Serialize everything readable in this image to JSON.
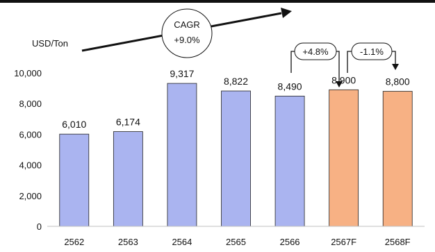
{
  "chart_data": {
    "type": "bar",
    "ylabel": "USD/Ton",
    "categories": [
      "2562",
      "2563",
      "2564",
      "2565",
      "2566",
      "2567F",
      "2568F"
    ],
    "values": [
      6010,
      6174,
      9317,
      8822,
      8490,
      8900,
      8800
    ],
    "value_labels": [
      "6,010",
      "6,174",
      "9,317",
      "8,822",
      "8,490",
      "8,900",
      "8,800"
    ],
    "forecast": [
      false,
      false,
      false,
      false,
      false,
      true,
      true
    ],
    "yticks": [
      "0",
      "2,000",
      "4,000",
      "6,000",
      "8,000",
      "10,000"
    ],
    "ytick_values": [
      0,
      2000,
      4000,
      6000,
      8000,
      10000
    ],
    "ylim": [
      0,
      10000
    ],
    "grid": false,
    "colors": {
      "actual": "#aab4f0",
      "forecast": "#f7b184",
      "text": "#111111"
    },
    "annotations": {
      "cagr": {
        "title": "CAGR",
        "value": "+9.0%"
      },
      "changes": [
        {
          "label": "+4.8%",
          "from": "2566",
          "to": "2567F"
        },
        {
          "label": "-1.1%",
          "from": "2567F",
          "to": "2568F"
        }
      ]
    }
  }
}
